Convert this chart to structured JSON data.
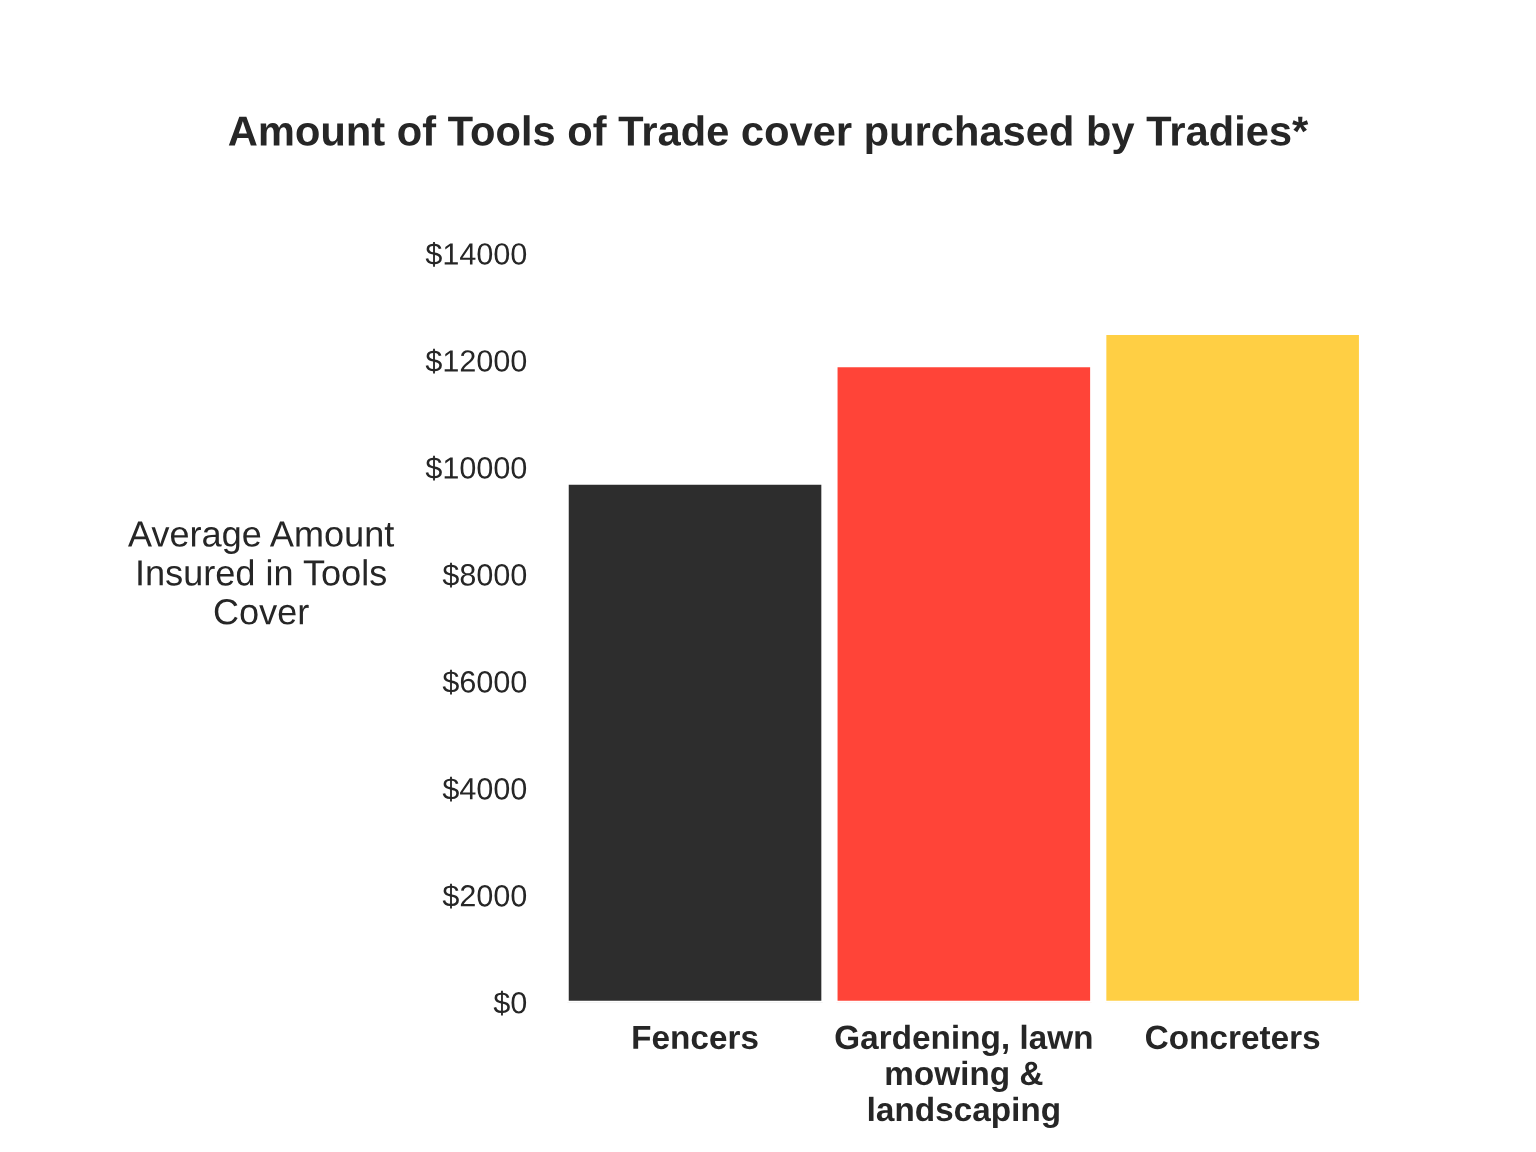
{
  "chart_data": {
    "type": "bar",
    "title": "Amount of Tools of Trade cover purchased by Tradies*",
    "ylabel": "Average Amount Insured in Tools Cover",
    "categories": [
      "Fencers",
      "Gardening, lawn mowing & landscaping",
      "Concreters"
    ],
    "values": [
      9700,
      11900,
      12500
    ],
    "colors": [
      "#2d2d2d",
      "#ff4438",
      "#ffcf44"
    ],
    "ylim": [
      0,
      14000
    ],
    "yticks": [
      {
        "value": 0,
        "label": "$0"
      },
      {
        "value": 2000,
        "label": "$2000"
      },
      {
        "value": 4000,
        "label": "$4000"
      },
      {
        "value": 6000,
        "label": "$6000"
      },
      {
        "value": 8000,
        "label": "$8000"
      },
      {
        "value": 10000,
        "label": "$10000"
      },
      {
        "value": 12000,
        "label": "$12000"
      },
      {
        "value": 14000,
        "label": "$14000"
      }
    ],
    "grid": false,
    "legend": false
  }
}
